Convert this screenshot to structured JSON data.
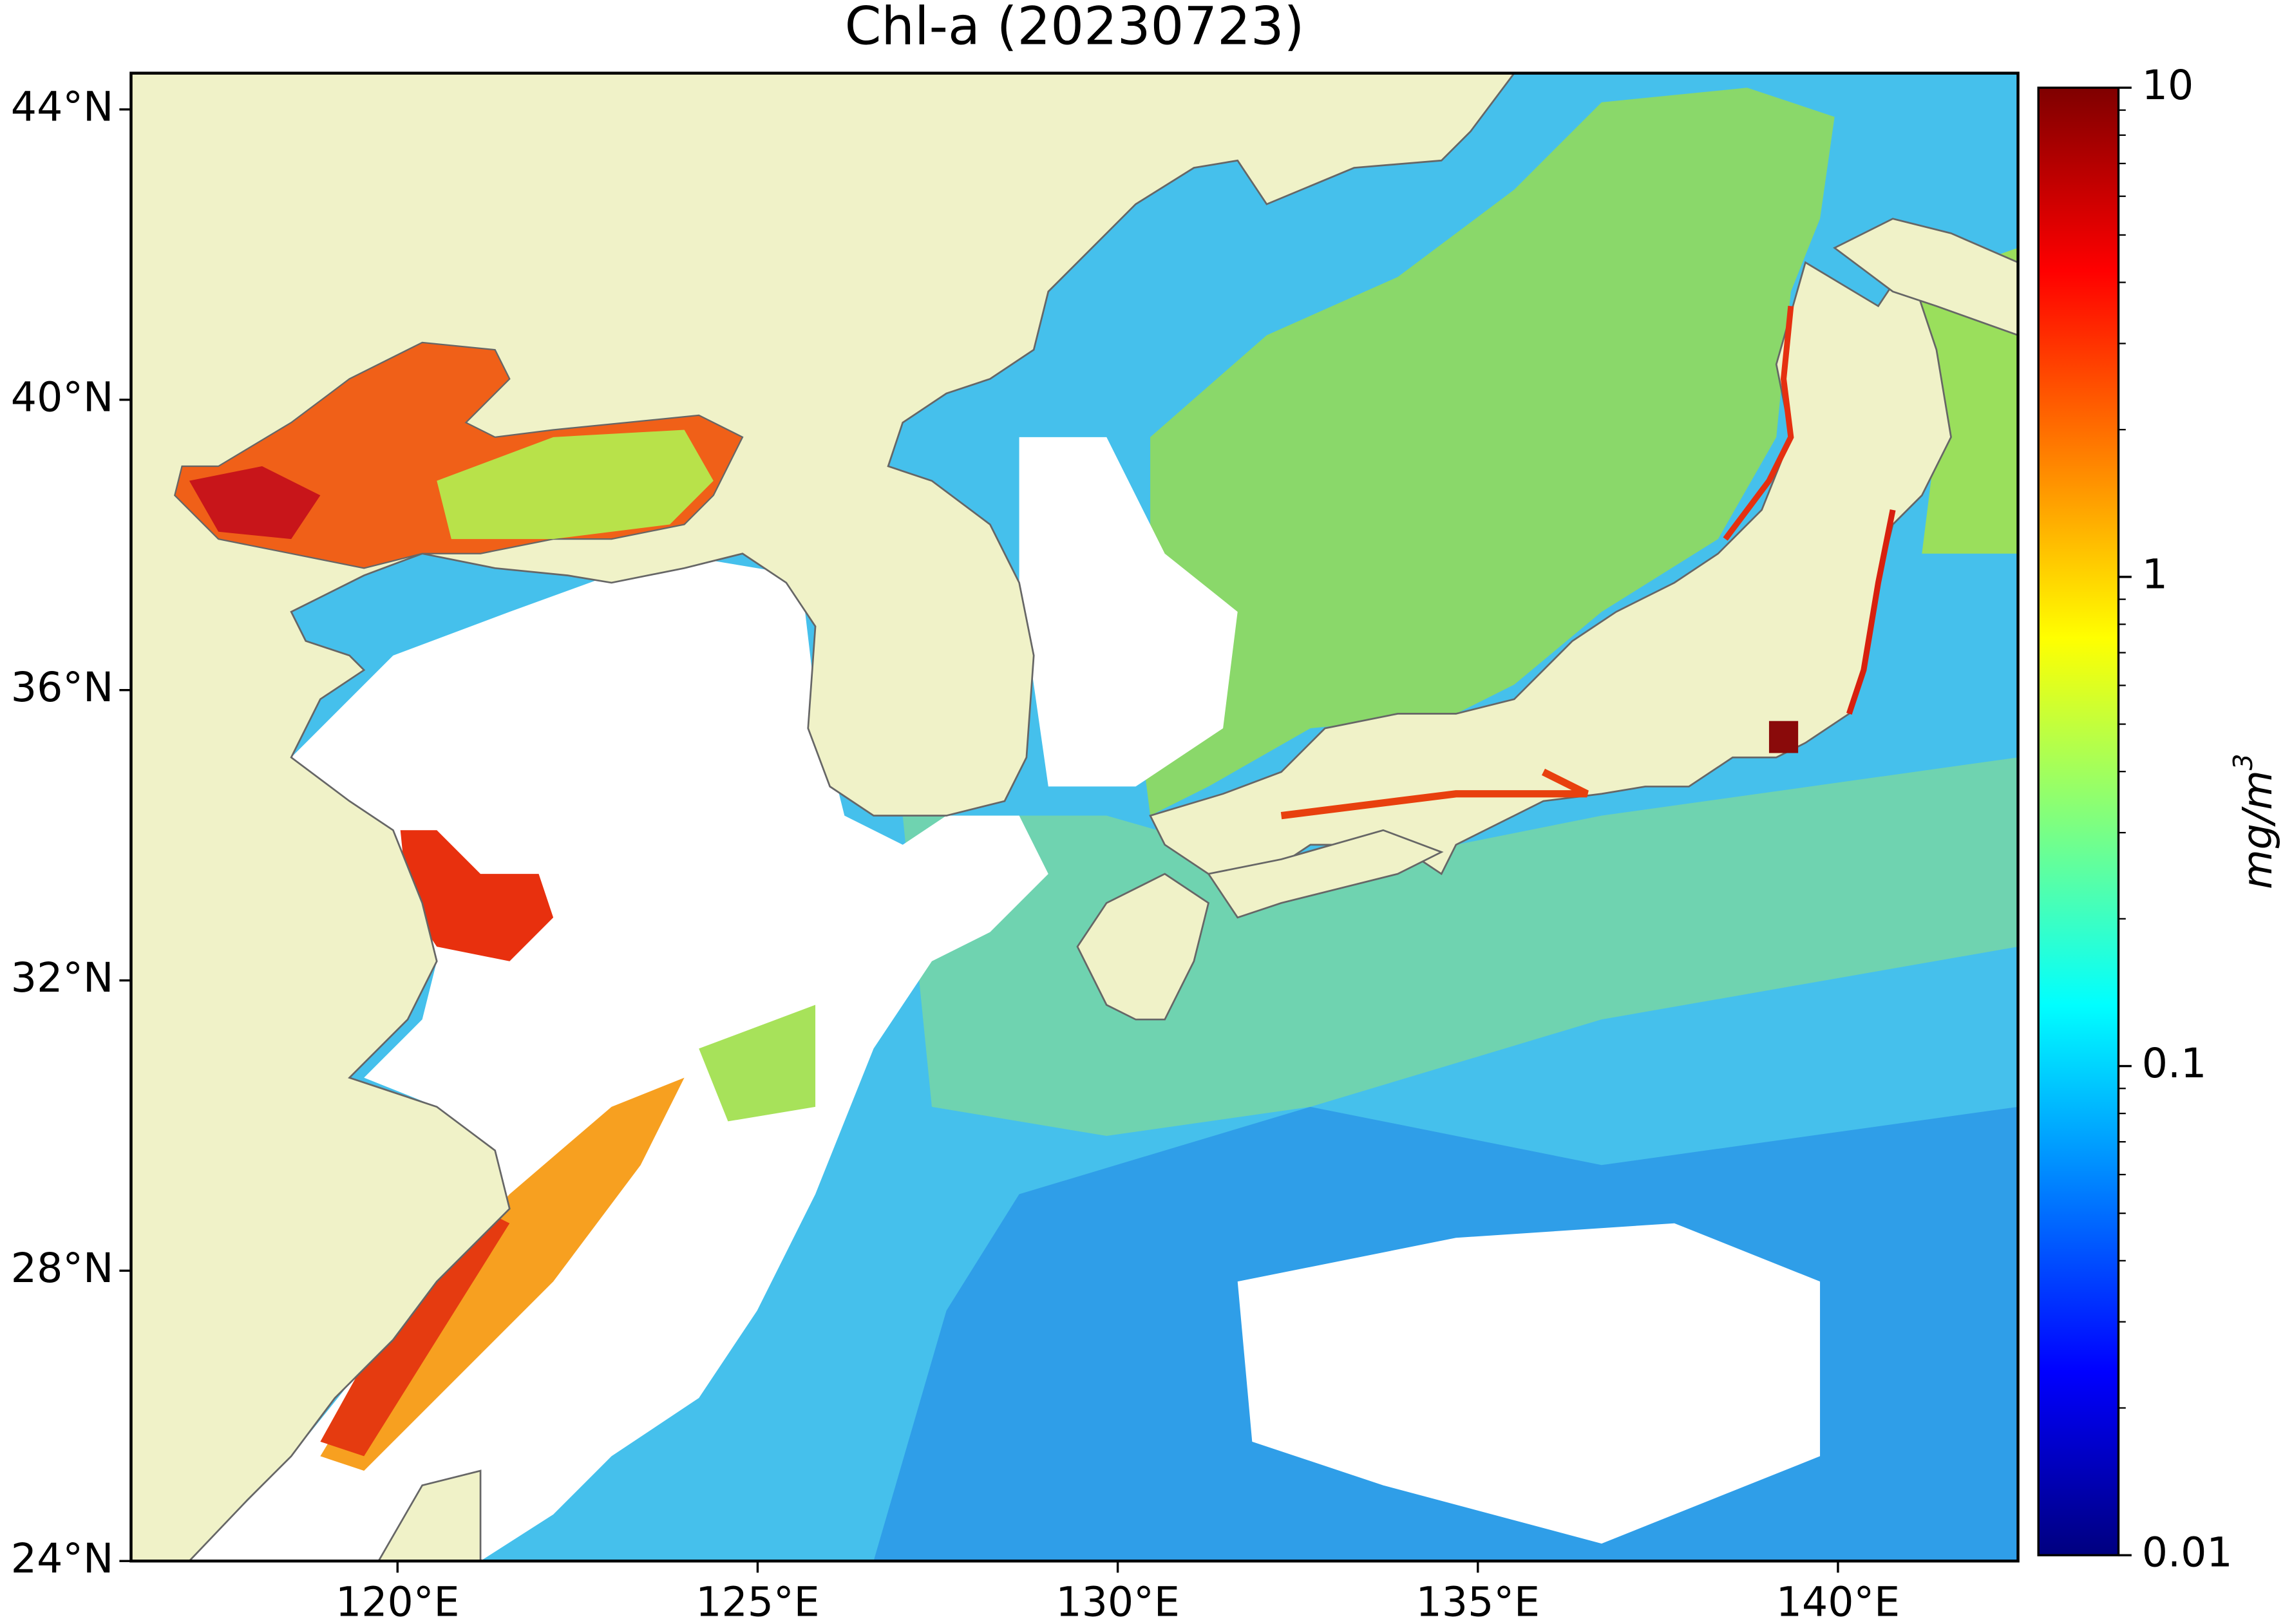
{
  "chart_data": {
    "type": "map",
    "title": "Chl-a (20230723)",
    "xlim": [
      116.3,
      142.5
    ],
    "ylim": [
      24,
      44.5
    ],
    "xticks": [
      {
        "value": 120,
        "label": "120°E"
      },
      {
        "value": 125,
        "label": "125°E"
      },
      {
        "value": 130,
        "label": "130°E"
      },
      {
        "value": 135,
        "label": "135°E"
      },
      {
        "value": 140,
        "label": "140°E"
      }
    ],
    "yticks": [
      {
        "value": 24,
        "label": "24°N"
      },
      {
        "value": 28,
        "label": "28°N"
      },
      {
        "value": 32,
        "label": "32°N"
      },
      {
        "value": 36,
        "label": "36°N"
      },
      {
        "value": 40,
        "label": "40°N"
      },
      {
        "value": 44,
        "label": "44°N"
      }
    ],
    "colorbar": {
      "label": "mg/m",
      "label_superscript": "3",
      "scale": "log",
      "colormap": "jet",
      "lim": [
        0.01,
        10
      ],
      "ticks": [
        0.01,
        0.1,
        1,
        10
      ],
      "minor_ticks": [
        0.02,
        0.03,
        0.04,
        0.05,
        0.06,
        0.07,
        0.08,
        0.09,
        0.2,
        0.3,
        0.4,
        0.5,
        0.6,
        0.7,
        0.8,
        0.9,
        2,
        3,
        4,
        5,
        6,
        7,
        8,
        9
      ]
    }
  }
}
